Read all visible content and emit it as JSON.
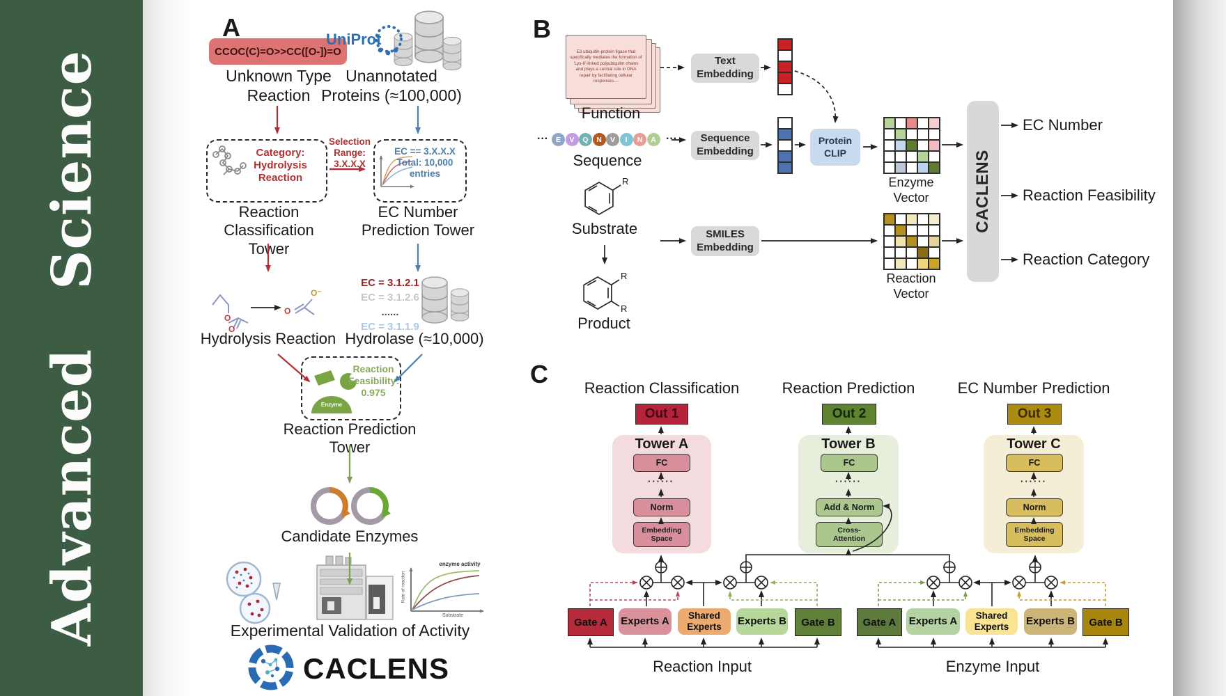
{
  "sidebar": {
    "word1": "Advanced",
    "word2": "Science"
  },
  "panels": {
    "a_label": "A",
    "b_label": "B",
    "c_label": "C"
  },
  "panelA": {
    "smiles": "CCOC(C)=O>>CC([O-])=O",
    "unknown_line1": "Unknown Type",
    "unknown_line2": "Reaction",
    "uniprot": "UniProt",
    "unannotated_line1": "Unannotated",
    "unannotated_line2": "Proteins (≈100,000)",
    "category_lines": [
      "Category:",
      "Hydrolysis",
      "Reaction"
    ],
    "selection_lines": [
      "Selection",
      "Range:",
      "3.X.X.X"
    ],
    "ec_box_lines": [
      "EC == 3.X.X.X",
      "Total: 10,000",
      "entries"
    ],
    "tower1_line1": "Reaction",
    "tower1_line2": "Classification Tower",
    "tower2_line1": "EC Number",
    "tower2_line2": "Prediction Tower",
    "ec_results": [
      {
        "text": "EC = 3.1.2.1",
        "color": "#9c2424"
      },
      {
        "text": "EC = 3.1.2.6",
        "color": "#c6c6c6"
      },
      {
        "text": "......",
        "color": "#4a4a4a"
      },
      {
        "text": "EC = 3.1.1.9",
        "color": "#aec7e4"
      }
    ],
    "hydrolysis_label": "Hydrolysis Reaction",
    "hydrolase_label": "Hydrolase (≈10,000)",
    "atoms": {
      "o1": "O",
      "o2": "O",
      "o3": "O⁻",
      "o4": "O"
    },
    "enzyme_badge": "Enzyme",
    "feasibility_lines": [
      "Reaction",
      "Feasibility:",
      "0.975"
    ],
    "tower3_label": "Reaction Prediction Tower",
    "candidate_label": "Candidate Enzymes",
    "activity_plot": {
      "ylabel": "Rate of reaction",
      "xlabel": "Substrate",
      "annotation": "enzyme activity"
    },
    "validation_label": "Experimental Validation of Activity",
    "brand": "CACLENS"
  },
  "panelB": {
    "function_text": "E3 ubiquitin-protein ligase that specifically mediates the formation of 'Lys-6'-linked polyubiquitin chains and plays a central role in DNA repair by facilitating cellular responses....",
    "function_label": "Function",
    "sequence_label": "Sequence",
    "ellipsis_left": "···",
    "ellipsis_right": "···",
    "residues": [
      {
        "ch": "E",
        "color": "#8fa7c6"
      },
      {
        "ch": "V",
        "color": "#c49ae0"
      },
      {
        "ch": "Q",
        "color": "#72b2b2"
      },
      {
        "ch": "N",
        "color": "#b05a20"
      },
      {
        "ch": "V",
        "color": "#9d9d9d"
      },
      {
        "ch": "I",
        "color": "#7fc4d4"
      },
      {
        "ch": "N",
        "color": "#e89c94"
      },
      {
        "ch": "A",
        "color": "#b2cc96"
      }
    ],
    "substrate_label": "Substrate",
    "product_label": "Product",
    "r1": "R",
    "r2": "R",
    "r3": "R",
    "text_embedding_l1": "Text",
    "text_embedding_l2": "Embedding",
    "seq_embedding_l1": "Sequence",
    "seq_embedding_l2": "Embedding",
    "smiles_embedding_l1": "SMILES",
    "smiles_embedding_l2": "Embedding",
    "clip_l1": "Protein",
    "clip_l2": "CLIP",
    "text_vector": [
      "#cc2127",
      "#ffffff",
      "#cc2127",
      "#cc2127",
      "#ffffff"
    ],
    "seq_vector": [
      "#ffffff",
      "#4f74b0",
      "#ffffff",
      "#4f74b0",
      "#4f74b0"
    ],
    "enzyme_grid": [
      "#b7d49a",
      "#ffffff",
      "#e8898c",
      "#ffffff",
      "#f5cdd1",
      "#ffffff",
      "#b7d49a",
      "#ffffff",
      "#ffffff",
      "#ffffff",
      "#ffffff",
      "#c5d7ea",
      "#5f7c35",
      "#ffffff",
      "#f2bcc0",
      "#ffffff",
      "#ffffff",
      "#ffffff",
      "#b7d49a",
      "#ffffff",
      "#ffffff",
      "#bcc8d8",
      "#ffffff",
      "#b9d4ec",
      "#5f7c35"
    ],
    "reaction_grid": [
      "#b3901f",
      "#ffffff",
      "#f2e7bb",
      "#ffffff",
      "#f5edcf",
      "#ffffff",
      "#b3901f",
      "#ffffff",
      "#ffffff",
      "#ffffff",
      "#ffffff",
      "#f2e3ad",
      "#b3901f",
      "#ffffff",
      "#e6d39b",
      "#ffffff",
      "#ffffff",
      "#ffffff",
      "#8a6c13",
      "#ffffff",
      "#ffffff",
      "#f2e7bb",
      "#ffffff",
      "#efd678",
      "#c8a42b"
    ],
    "enzyme_vector_label": "Enzyme Vector",
    "reaction_vector_label": "Reaction Vector",
    "caclens": "CACLENS",
    "out1": "EC Number",
    "out2": "Reaction Feasibility",
    "out3": "Reaction Category"
  },
  "panelC": {
    "col1_title": "Reaction Classification",
    "col2_title": "Reaction Prediction",
    "col3_title": "EC Number Prediction",
    "out1": "Out 1",
    "out2": "Out 2",
    "out3": "Out 3",
    "towerA": "Tower A",
    "towerB": "Tower B",
    "towerC": "Tower C",
    "fc": "FC",
    "dots": "······",
    "norm": "Norm",
    "addnorm": "Add & Norm",
    "emb_l1": "Embedding",
    "emb_l2": "Space",
    "cross_l1": "Cross-",
    "cross_l2": "Attention",
    "g1": {
      "gateA": "Gate A",
      "expA": "Experts A",
      "shared_l1": "Shared",
      "shared_l2": "Experts",
      "expB": "Experts B",
      "gateB": "Gate B",
      "label": "Reaction Input"
    },
    "g2": {
      "gateA": "Gate A",
      "expA": "Experts A",
      "shared_l1": "Shared",
      "shared_l2": "Experts",
      "expB": "Experts B",
      "gateB": "Gate B",
      "label": "Enzyme Input"
    }
  }
}
